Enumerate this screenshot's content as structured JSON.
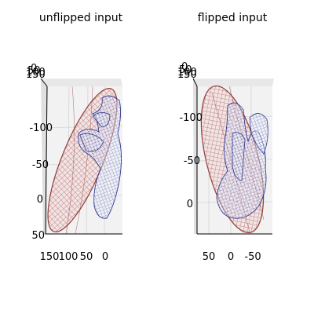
{
  "chart_data": [
    {
      "type": "surface3d",
      "title": "unflipped input",
      "z_ticks": [
        "0",
        "50",
        "100",
        "150"
      ],
      "y_ticks": [
        "-100",
        "-50",
        "0",
        "50"
      ],
      "x_ticks": [
        "150",
        "100",
        "50",
        "0"
      ],
      "series": [
        {
          "color": "#a0403f"
        },
        {
          "color": "#1f2a8c"
        }
      ]
    },
    {
      "type": "surface3d",
      "title": "flipped input",
      "z_ticks": [
        "0",
        "50",
        "100",
        "150"
      ],
      "y_ticks": [
        "-100",
        "-50",
        "0"
      ],
      "x_ticks": [
        "50",
        "0",
        "-50"
      ],
      "series": [
        {
          "color": "#a0403f"
        },
        {
          "color": "#1f2a8c"
        }
      ]
    }
  ]
}
